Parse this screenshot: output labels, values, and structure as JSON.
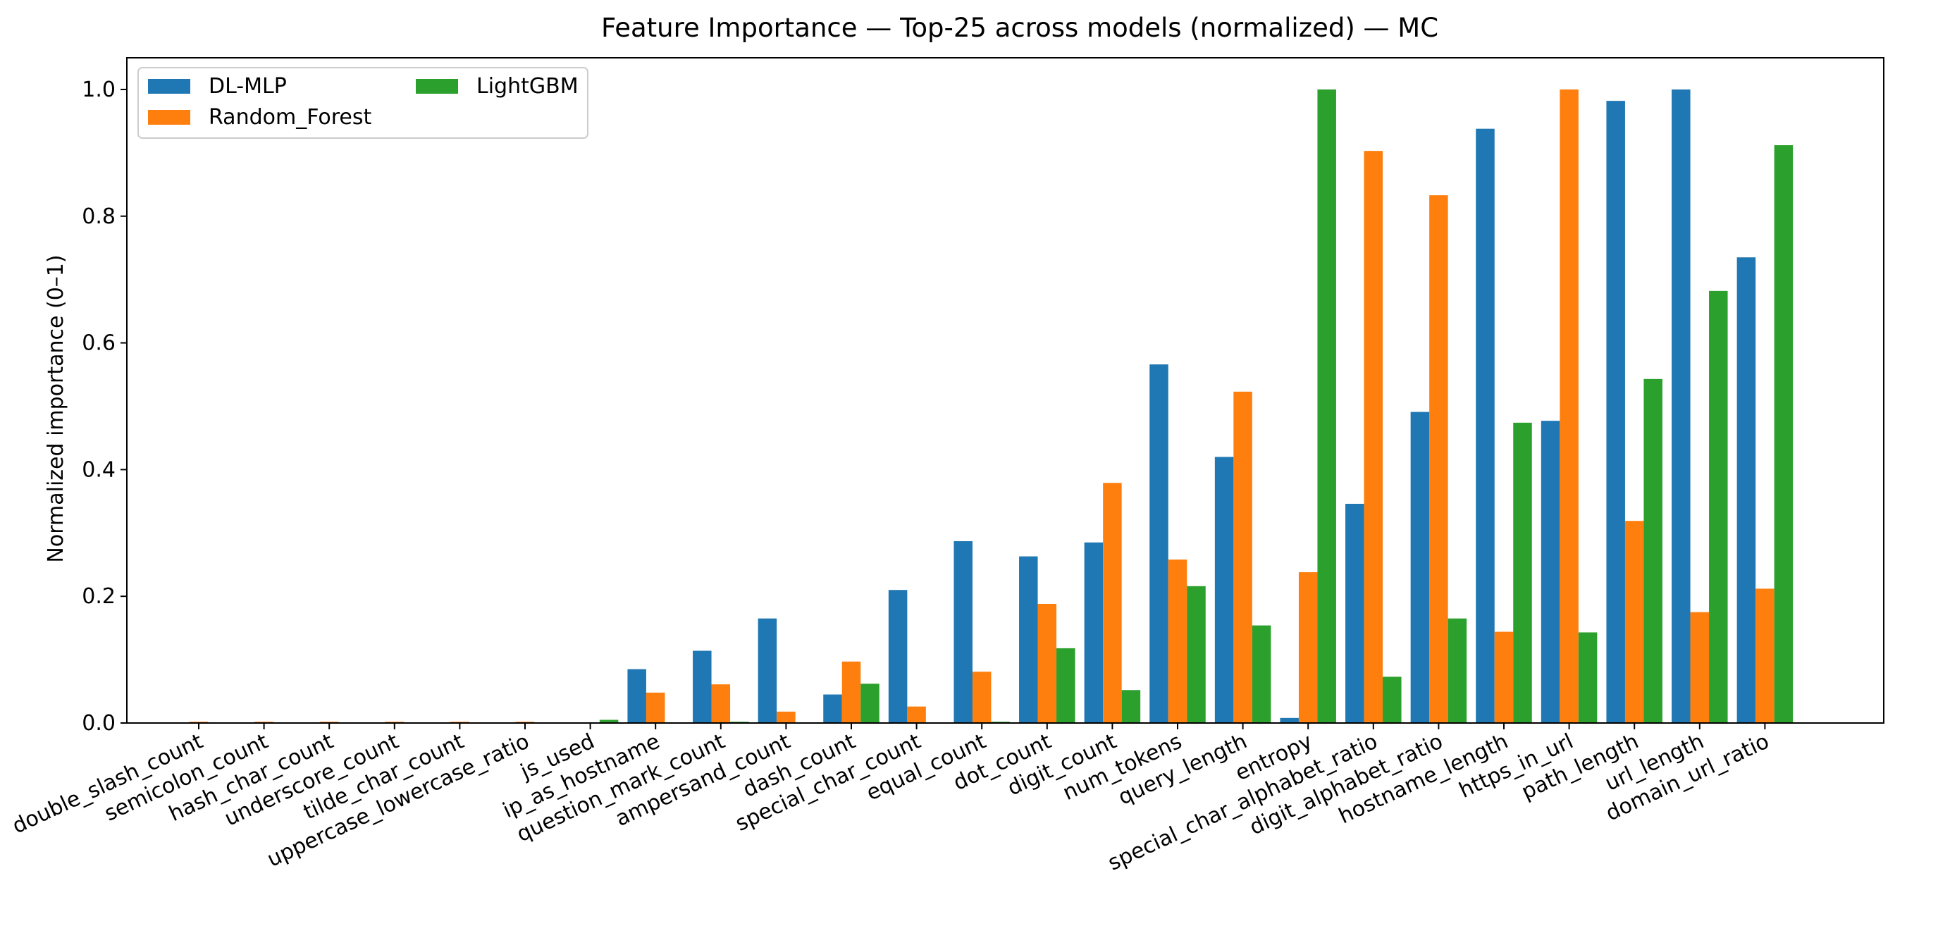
{
  "chart_data": {
    "type": "bar",
    "title": "Feature Importance — Top-25 across models (normalized) — MC",
    "xlabel": "",
    "ylabel": "Normalized importance (0–1)",
    "ylim": [
      0,
      1.05
    ],
    "yticks": [
      "0.0",
      "0.2",
      "0.4",
      "0.6",
      "0.8",
      "1.0"
    ],
    "grid": false,
    "legend_position": "top-left",
    "categories": [
      "double_slash_count",
      "semicolon_count",
      "hash_char_count",
      "underscore_count",
      "tilde_char_count",
      "uppercase_lowercase_ratio",
      "js_used",
      "ip_as_hostname",
      "question_mark_count",
      "ampersand_count",
      "dash_count",
      "special_char_count",
      "equal_count",
      "dot_count",
      "digit_count",
      "num_tokens",
      "query_length",
      "entropy",
      "special_char_alphabet_ratio",
      "digit_alphabet_ratio",
      "hostname_length",
      "https_in_url",
      "path_length",
      "url_length",
      "domain_url_ratio"
    ],
    "series": [
      {
        "name": "DL-MLP",
        "color": "#1f77b4",
        "values": [
          0.0,
          0.0,
          0.0,
          0.0,
          0.0,
          0.0,
          0.0,
          0.085,
          0.114,
          0.165,
          0.045,
          0.21,
          0.287,
          0.263,
          0.285,
          0.566,
          0.42,
          0.008,
          0.346,
          0.491,
          0.938,
          0.477,
          0.982,
          1.0,
          0.735
        ]
      },
      {
        "name": "Random_Forest",
        "color": "#ff7f0e",
        "values": [
          0.002,
          0.002,
          0.002,
          0.002,
          0.002,
          0.002,
          0.0,
          0.048,
          0.061,
          0.018,
          0.097,
          0.026,
          0.081,
          0.188,
          0.379,
          0.258,
          0.523,
          0.238,
          0.903,
          0.833,
          0.144,
          1.0,
          0.319,
          0.175,
          0.212
        ]
      },
      {
        "name": "LightGBM",
        "color": "#2ca02c",
        "values": [
          0.0,
          0.0,
          0.0,
          0.0,
          0.0,
          0.0,
          0.005,
          0.0,
          0.002,
          0.0,
          0.062,
          0.0,
          0.002,
          0.118,
          0.052,
          0.216,
          0.154,
          1.0,
          0.073,
          0.165,
          0.474,
          0.143,
          0.543,
          0.682,
          0.912
        ]
      }
    ]
  }
}
